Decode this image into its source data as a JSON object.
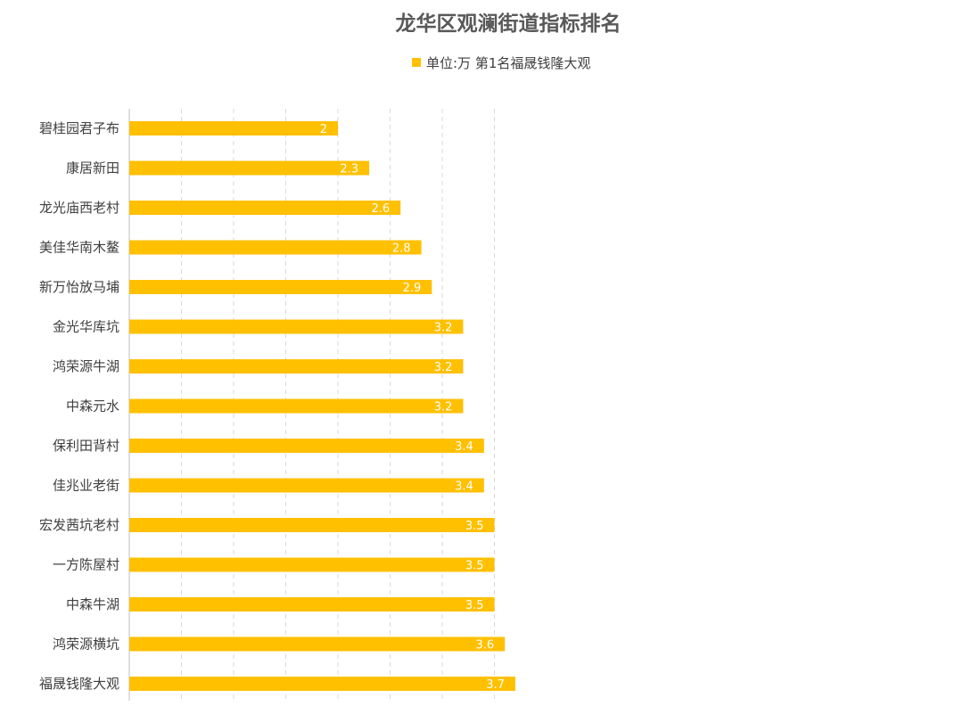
{
  "chart_data": {
    "type": "bar",
    "orientation": "horizontal",
    "title": "龙华区观澜街道指标排名",
    "legend": {
      "position": "top-center",
      "entries": [
        "单位:万 第1名福晟钱隆大观"
      ]
    },
    "series": [
      {
        "name": "单位:万 第1名福晟钱隆大观",
        "color": "#FFC000",
        "values": [
          2,
          2.3,
          2.6,
          2.8,
          2.9,
          3.2,
          3.2,
          3.2,
          3.4,
          3.4,
          3.5,
          3.5,
          3.5,
          3.6,
          3.7
        ]
      }
    ],
    "categories": [
      "碧桂园君子布",
      "康居新田",
      "龙光庙西老村",
      "美佳华南木鳌",
      "新万怡放马埔",
      "金光华库坑",
      "鸿荣源牛湖",
      "中森元水",
      "保利田背村",
      "佳兆业老街",
      "宏发茜坑老村",
      "一方陈屋村",
      "中森牛湖",
      "鸿荣源横坑",
      "福晟钱隆大观"
    ],
    "xlim": [
      0,
      3.7
    ],
    "grid": true,
    "data_labels": true
  }
}
